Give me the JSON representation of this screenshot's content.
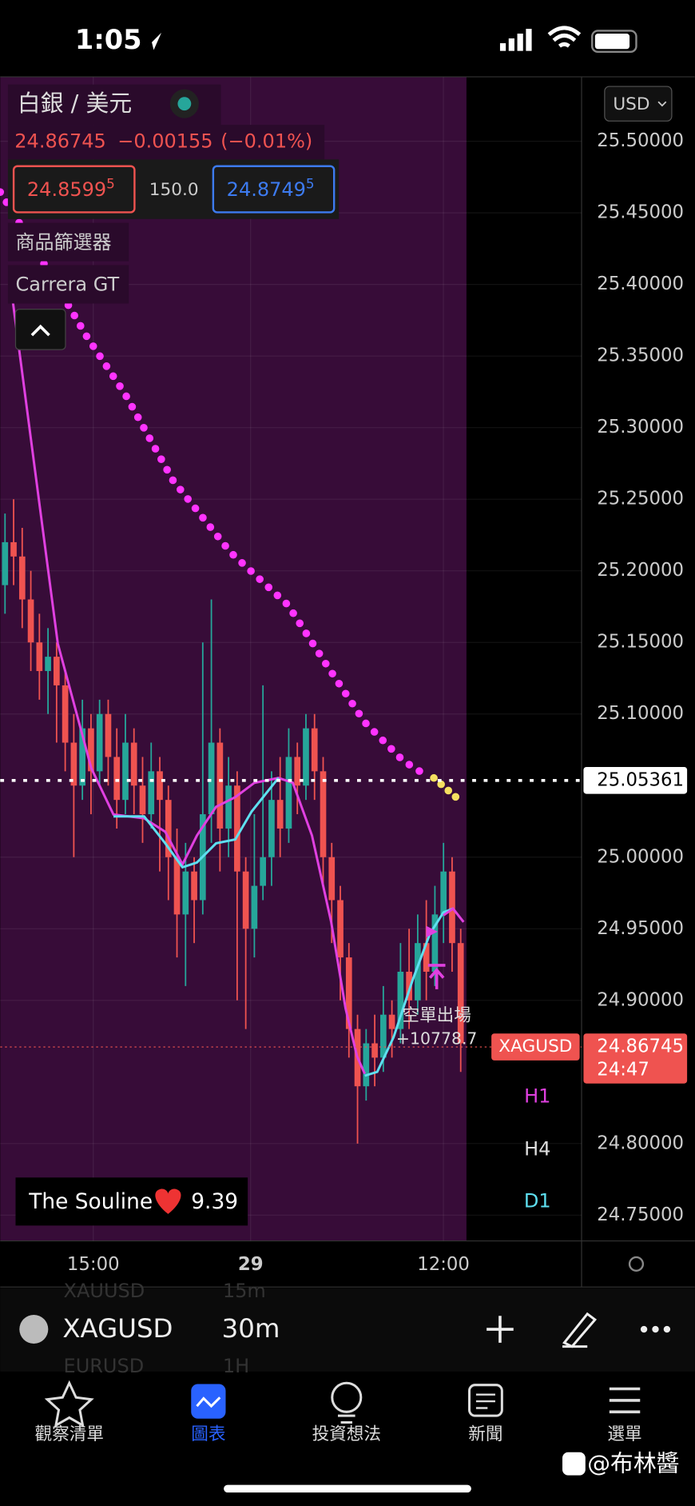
{
  "status_bar": {
    "time": "1:05"
  },
  "legend": {
    "symbol": "白銀 / 美元",
    "last": "24.86745",
    "change": "−0.00155",
    "change_pct": "(−0.01%)",
    "bid": "24.8599",
    "bid_sup": "5",
    "spread": "150.0",
    "ask": "24.8749",
    "ask_sup": "5",
    "indicators": [
      "商品篩選器",
      "Carrera GT"
    ]
  },
  "currency": "USD",
  "chart_data": {
    "type": "candlestick",
    "open": [
      25.19,
      25.22,
      25.21,
      25.18,
      25.15,
      25.13,
      25.14,
      25.12,
      25.08,
      25.05,
      25.09,
      25.06,
      25.1,
      25.07,
      25.04,
      25.08,
      25.05,
      25.03,
      25.06,
      25.04,
      25.0,
      24.96,
      24.99,
      24.97,
      25.03,
      25.08,
      25.02,
      25.05,
      24.99,
      24.95,
      24.98,
      25.0,
      25.04,
      25.02,
      25.07,
      25.05,
      25.09,
      25.06,
      25.0,
      24.97,
      24.93,
      24.88,
      24.84,
      24.87,
      24.86,
      24.89,
      24.88,
      24.92,
      24.9,
      24.94,
      24.92,
      24.96,
      24.99,
      24.94
    ],
    "high": [
      25.24,
      25.25,
      25.23,
      25.2,
      25.17,
      25.16,
      25.15,
      25.13,
      25.1,
      25.11,
      25.1,
      25.11,
      25.11,
      25.09,
      25.1,
      25.09,
      25.07,
      25.08,
      25.07,
      25.05,
      25.02,
      25.01,
      25.0,
      25.15,
      25.18,
      25.09,
      25.07,
      25.06,
      25.0,
      25.03,
      25.12,
      25.06,
      25.07,
      25.09,
      25.08,
      25.1,
      25.1,
      25.07,
      25.01,
      24.98,
      24.94,
      24.89,
      24.88,
      24.89,
      24.91,
      24.9,
      24.94,
      24.95,
      24.96,
      24.97,
      24.98,
      25.01,
      25.0,
      24.95
    ],
    "low": [
      25.17,
      25.19,
      25.16,
      25.13,
      25.11,
      25.1,
      25.08,
      25.06,
      25.0,
      25.04,
      25.03,
      25.05,
      25.05,
      25.02,
      25.03,
      25.03,
      25.01,
      25.02,
      24.99,
      24.97,
      24.93,
      24.91,
      24.94,
      24.96,
      25.01,
      24.99,
      25.0,
      24.9,
      24.88,
      24.93,
      24.97,
      24.98,
      25.0,
      25.01,
      25.03,
      25.04,
      25.04,
      24.98,
      24.94,
      24.9,
      24.86,
      24.8,
      24.83,
      24.84,
      24.85,
      24.86,
      24.87,
      24.88,
      24.89,
      24.9,
      24.91,
      24.94,
      24.92,
      24.85
    ],
    "close": [
      25.22,
      25.21,
      25.18,
      25.15,
      25.13,
      25.14,
      25.12,
      25.08,
      25.05,
      25.09,
      25.06,
      25.1,
      25.07,
      25.04,
      25.08,
      25.05,
      25.03,
      25.06,
      25.04,
      25.0,
      24.96,
      24.99,
      24.97,
      25.03,
      25.08,
      25.02,
      25.05,
      24.99,
      24.95,
      24.98,
      25.0,
      25.04,
      25.02,
      25.07,
      25.05,
      25.09,
      25.06,
      25.0,
      24.97,
      24.93,
      24.88,
      24.84,
      24.87,
      24.86,
      24.89,
      24.88,
      24.92,
      24.9,
      24.94,
      24.92,
      24.96,
      24.99,
      24.94,
      24.87
    ],
    "up_color": "#26a69a",
    "down_color": "#ef5350",
    "ylim": [
      24.732,
      25.545
    ],
    "yticks": [
      {
        "value": 25.5,
        "label": "25.50000"
      },
      {
        "value": 25.45,
        "label": "25.45000"
      },
      {
        "value": 25.4,
        "label": "25.40000"
      },
      {
        "value": 25.35,
        "label": "25.35000"
      },
      {
        "value": 25.3,
        "label": "25.30000"
      },
      {
        "value": 25.25,
        "label": "25.25000"
      },
      {
        "value": 25.2,
        "label": "25.20000"
      },
      {
        "value": 25.15,
        "label": "25.15000"
      },
      {
        "value": 25.1,
        "label": "25.10000"
      },
      {
        "value": 25.0,
        "label": "25.00000"
      },
      {
        "value": 24.95,
        "label": "24.95000"
      },
      {
        "value": 24.9,
        "label": "24.90000"
      },
      {
        "value": 24.8,
        "label": "24.80000"
      },
      {
        "value": 24.75,
        "label": "24.75000"
      }
    ],
    "xticks": [
      "15:00",
      "29",
      "12:00"
    ],
    "crosshair": {
      "value": 25.05361,
      "label": "25.05361"
    },
    "last_price": {
      "value": 24.86745,
      "label": "24.86745",
      "symbol": "XAGUSD",
      "countdown": "24:47"
    },
    "annotation": {
      "text": "空單出場",
      "pnl": "+10778.7"
    },
    "timeframes": [
      "H1",
      "H4",
      "D1"
    ],
    "grid": true
  },
  "badge": {
    "name": "The Souline",
    "score": 9.39
  },
  "toolbar": {
    "symbol": "XAGUSD",
    "interval": "30m",
    "picker_prev": [
      "XAUUSD",
      "15m"
    ],
    "picker_next": [
      "EURUSD",
      "1H"
    ]
  },
  "nav": [
    "觀察清單",
    "圖表",
    "投資想法",
    "新聞",
    "選單"
  ],
  "watermark": "@布林醬"
}
